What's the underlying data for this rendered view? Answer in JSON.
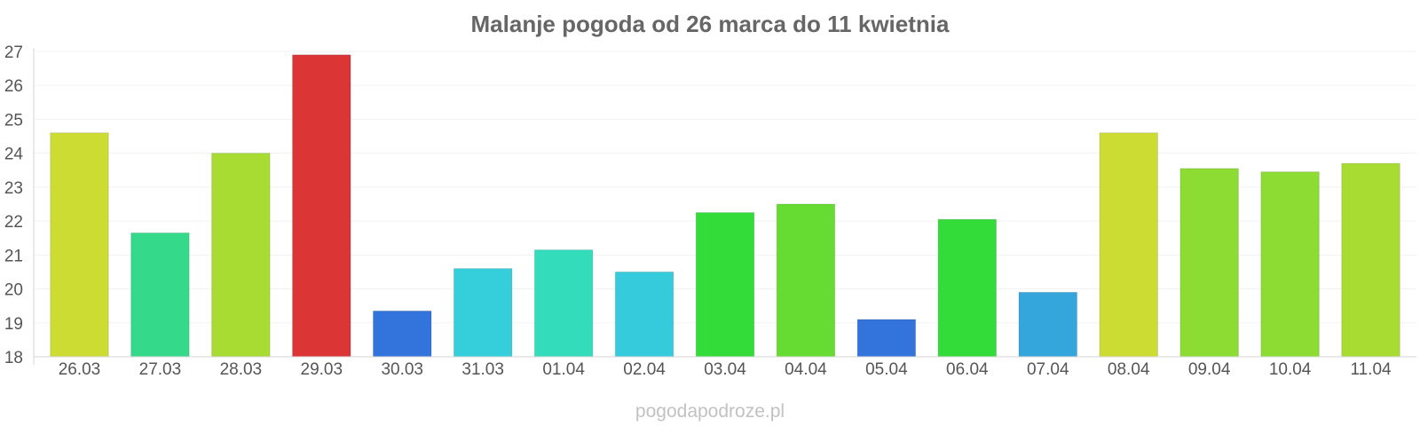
{
  "chart_data": {
    "type": "bar",
    "title": "Malanje pogoda od 26 marca do 11 kwietnia",
    "xlabel": "",
    "ylabel": "",
    "ylim": [
      18,
      27
    ],
    "y_ticks": [
      18,
      19,
      20,
      21,
      22,
      23,
      24,
      25,
      26,
      27
    ],
    "grid": true,
    "legend": "none",
    "categories": [
      "26.03",
      "27.03",
      "28.03",
      "29.03",
      "30.03",
      "31.03",
      "01.04",
      "02.04",
      "03.04",
      "04.04",
      "05.04",
      "06.04",
      "07.04",
      "08.04",
      "09.04",
      "10.04",
      "11.04"
    ],
    "values": [
      24.6,
      21.65,
      24.0,
      26.9,
      19.35,
      20.6,
      21.15,
      20.5,
      22.25,
      22.5,
      19.1,
      22.05,
      19.9,
      24.6,
      23.55,
      23.45,
      23.7
    ],
    "colors": [
      "#cddc33",
      "#34d98a",
      "#a8dc33",
      "#dc3535",
      "#3374dc",
      "#35cfdc",
      "#33dcbb",
      "#35cadc",
      "#34dc3a",
      "#66dc33",
      "#3374dc",
      "#34dc3a",
      "#35a6dc",
      "#cddc33",
      "#8ddc33",
      "#8ddc33",
      "#a8dc33"
    ]
  },
  "watermark": "pogodapodroze.pl"
}
